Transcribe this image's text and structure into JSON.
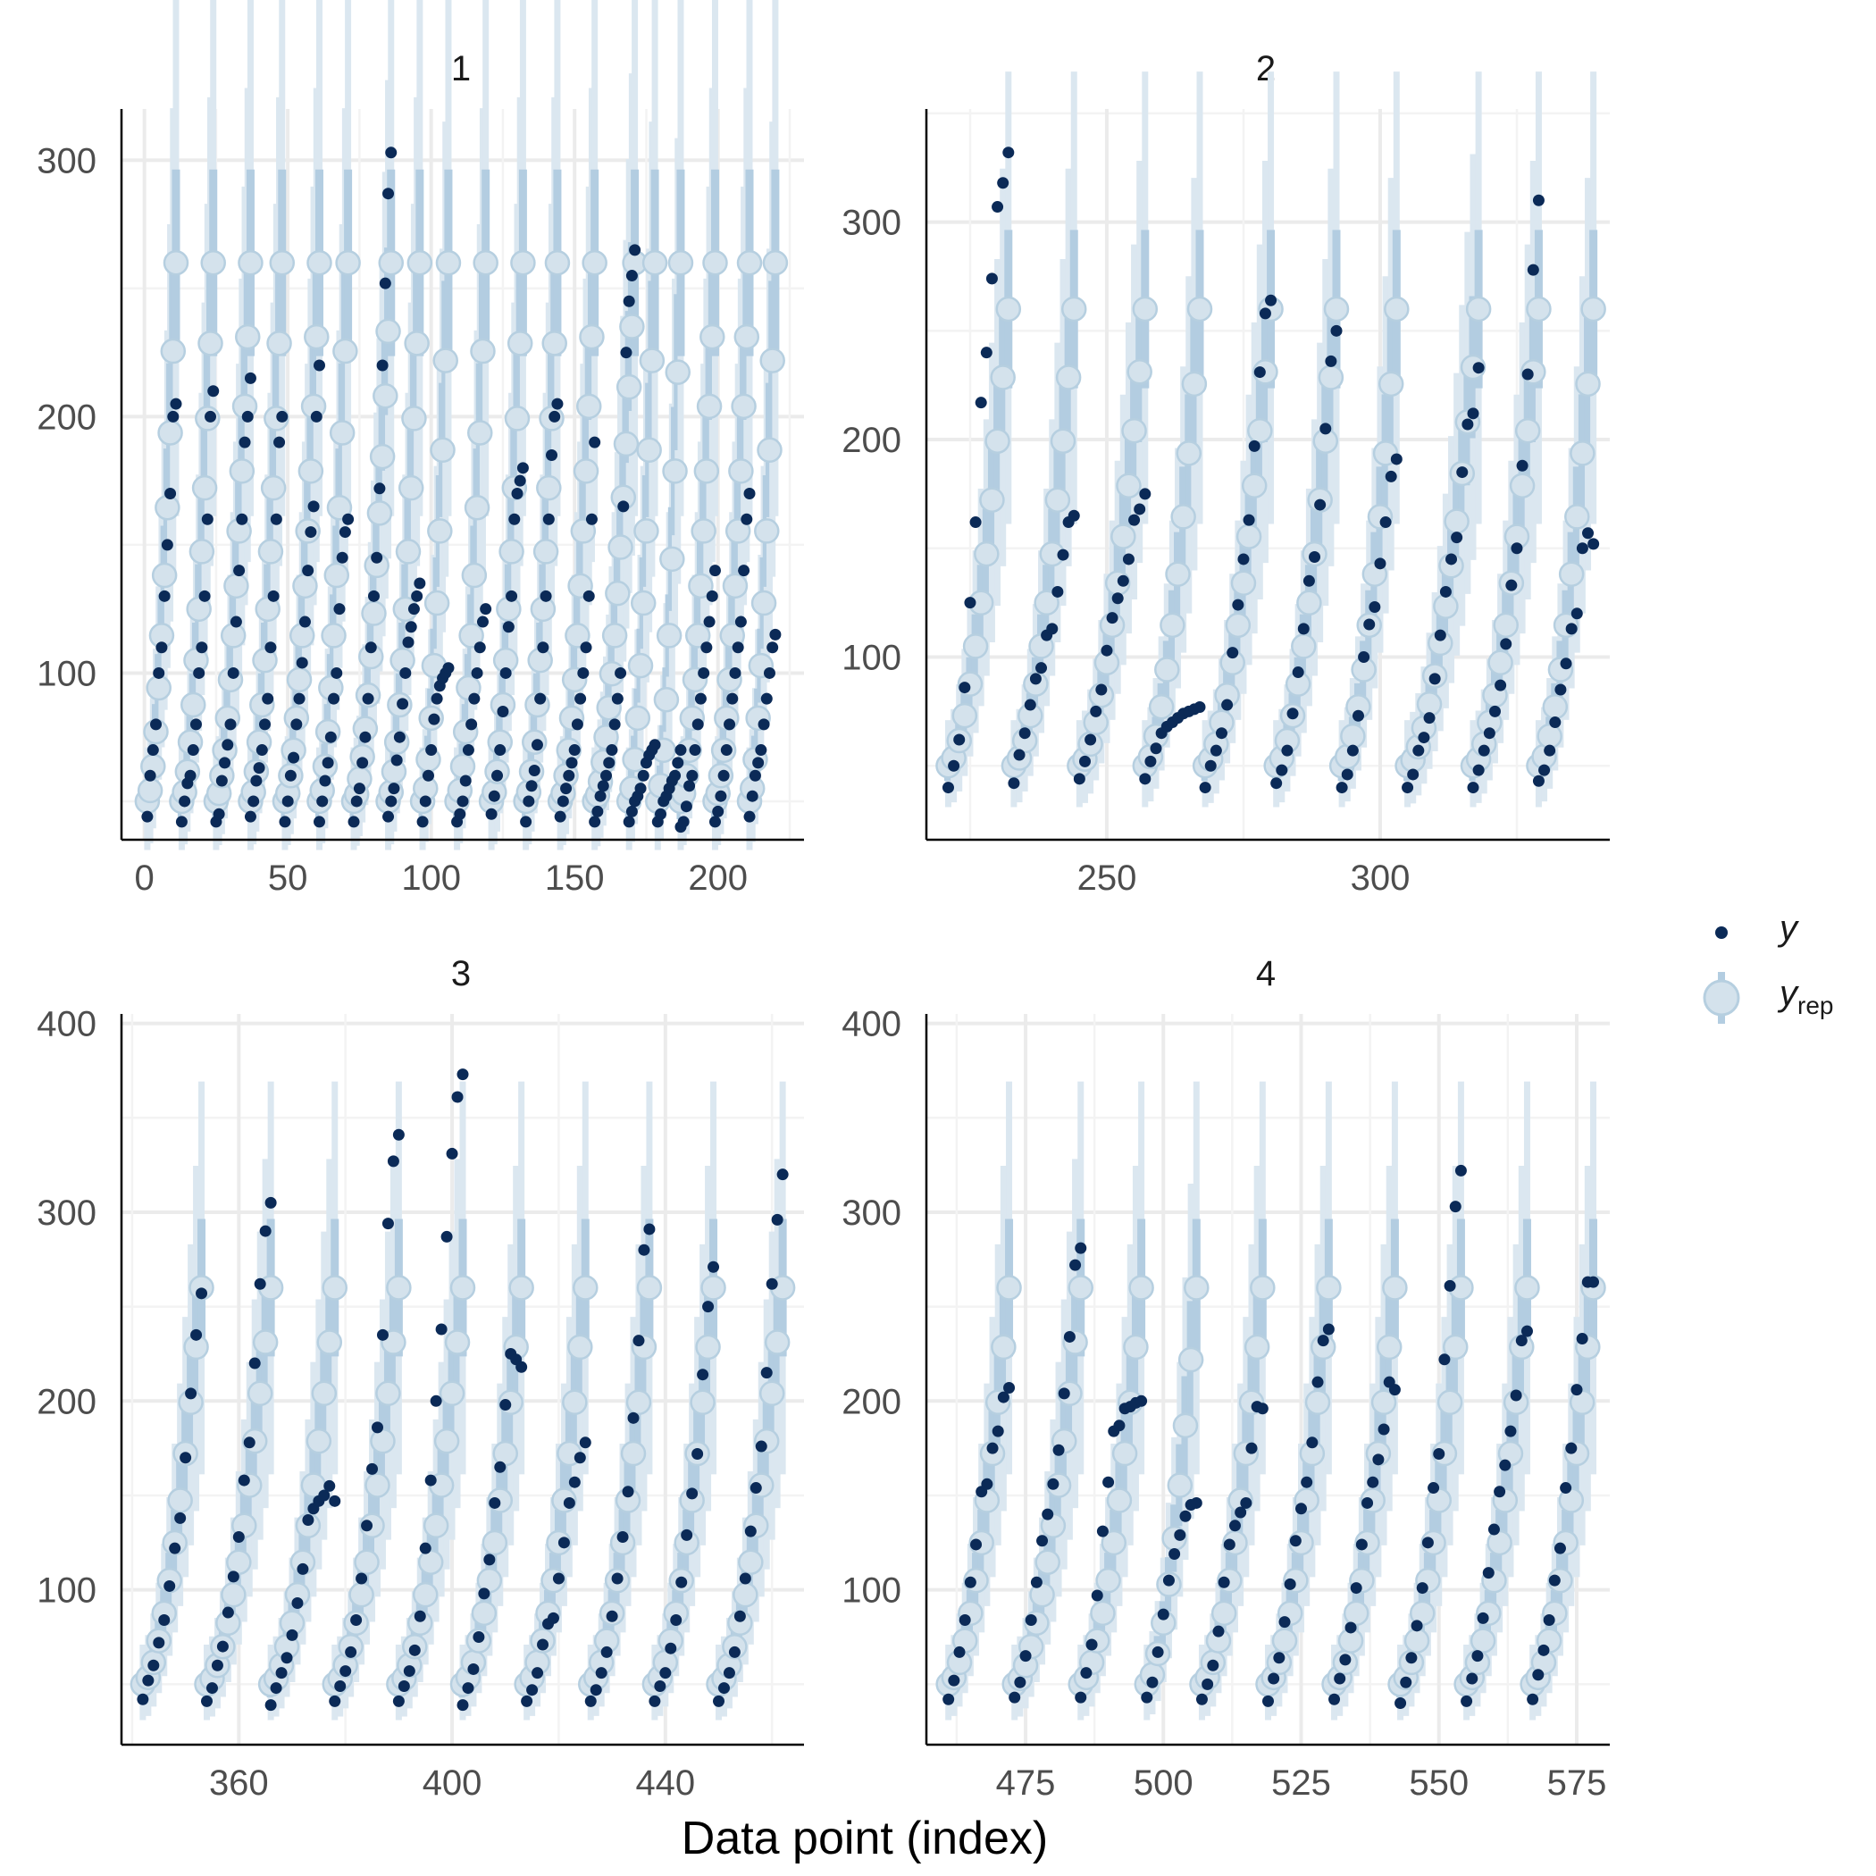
{
  "chart_data": {
    "type": "scatter",
    "xlabel": "Data point (index)",
    "legend": {
      "placement": "right",
      "items": [
        {
          "key": "y",
          "label": "y",
          "sub": ""
        },
        {
          "key": "yrep",
          "label": "y",
          "sub": "rep"
        }
      ]
    },
    "colors": {
      "y_point": "#0b2a57",
      "yrep_point": "#d4e2ec",
      "yrep_point_edge": "#b6cfe0",
      "interval_inner": "#b3cde1",
      "interval_outer": "#dbe7f0",
      "grid_major": "#ebebeb",
      "grid_minor": "#f3f3f3",
      "axis": "#000000"
    },
    "panels": [
      {
        "label": "1",
        "xlim": [
          -8,
          230
        ],
        "ylim": [
          35,
          320
        ],
        "xticks": [
          0,
          50,
          100,
          150,
          200
        ],
        "yticks": [
          100,
          200,
          300
        ],
        "groups": [
          {
            "start": 1,
            "y": [
              44,
              60,
              70,
              80,
              100,
              110,
              130,
              150,
              170,
              200,
              205
            ]
          },
          {
            "start": 13,
            "y": [
              42,
              50,
              57,
              60,
              70,
              80,
              100,
              110,
              130,
              160,
              200,
              210
            ]
          },
          {
            "start": 25,
            "y": [
              42,
              45,
              58,
              65,
              72,
              80,
              100,
              120,
              140,
              160,
              190,
              200,
              215
            ]
          },
          {
            "start": 37,
            "y": [
              44,
              50,
              58,
              63,
              70,
              80,
              90,
              110,
              130,
              160,
              190,
              200
            ]
          },
          {
            "start": 49,
            "y": [
              42,
              50,
              60,
              67,
              80,
              90,
              104,
              120,
              140,
              155,
              165,
              200,
              220
            ]
          },
          {
            "start": 61,
            "y": [
              42,
              50,
              58,
              65,
              75,
              90,
              100,
              125,
              145,
              155,
              160
            ]
          },
          {
            "start": 73,
            "y": [
              42,
              50,
              55,
              65,
              75,
              90,
              110,
              130,
              145,
              172,
              220,
              252,
              287,
              303
            ]
          },
          {
            "start": 85,
            "y": [
              44,
              50,
              55,
              66,
              75,
              88,
              100,
              112,
              118,
              125,
              130,
              135
            ]
          },
          {
            "start": 97,
            "y": [
              42,
              50,
              60,
              70,
              82,
              90,
              95,
              98,
              100,
              102
            ]
          },
          {
            "start": 109,
            "y": [
              42,
              45,
              50,
              58,
              70,
              80,
              90,
              100,
              110,
              120,
              125
            ]
          },
          {
            "start": 121,
            "y": [
              45,
              52,
              60,
              70,
              85,
              100,
              118,
              130,
              160,
              170,
              175,
              180
            ]
          },
          {
            "start": 133,
            "y": [
              42,
              50,
              56,
              62,
              72,
              90,
              110,
              130,
              160,
              185,
              200,
              205
            ]
          },
          {
            "start": 145,
            "y": [
              44,
              50,
              55,
              60,
              65,
              70,
              80,
              90,
              100,
              110,
              130,
              160,
              190
            ]
          },
          {
            "start": 157,
            "y": [
              42,
              46,
              52,
              56,
              60,
              65,
              70,
              80,
              90,
              100,
              165,
              225,
              245,
              255,
              265
            ]
          },
          {
            "start": 169,
            "y": [
              42,
              46,
              50,
              52,
              55,
              60,
              65,
              68,
              70,
              72
            ]
          },
          {
            "start": 179,
            "y": [
              42,
              45,
              50,
              52,
              55,
              58,
              60,
              65,
              70
            ]
          },
          {
            "start": 187,
            "y": [
              40,
              42,
              48,
              56,
              60,
              70,
              80,
              90,
              100,
              110,
              120,
              130,
              140
            ]
          },
          {
            "start": 199,
            "y": [
              42,
              46,
              52,
              60,
              70,
              80,
              90,
              100,
              110,
              120,
              140,
              160,
              170
            ]
          },
          {
            "start": 211,
            "y": [
              44,
              52,
              60,
              65,
              70,
              80,
              90,
              100,
              110,
              115
            ]
          }
        ]
      },
      {
        "label": "2",
        "xlim": [
          217,
          342
        ],
        "ylim": [
          16,
          352
        ],
        "xticks": [
          250,
          300
        ],
        "yticks": [
          100,
          200,
          300
        ],
        "groups": [
          {
            "start": 221,
            "y": [
              40,
              50,
              62,
              86,
              125,
              162,
              217,
              240,
              274,
              307,
              318,
              332
            ]
          },
          {
            "start": 233,
            "y": [
              42,
              55,
              65,
              78,
              90,
              95,
              110,
              113,
              130,
              147,
              162,
              165
            ]
          },
          {
            "start": 245,
            "y": [
              44,
              52,
              62,
              75,
              85,
              103,
              118,
              127,
              135,
              145,
              163,
              168,
              175
            ]
          },
          {
            "start": 257,
            "y": [
              44,
              52,
              58,
              65,
              68,
              70,
              72,
              74,
              75,
              76,
              77
            ]
          },
          {
            "start": 268,
            "y": [
              40,
              50,
              57,
              65,
              78,
              102,
              124,
              145,
              163,
              197,
              231,
              258,
              264
            ]
          },
          {
            "start": 281,
            "y": [
              42,
              48,
              57,
              74,
              93,
              113,
              135,
              146,
              170,
              205,
              236,
              250
            ]
          },
          {
            "start": 293,
            "y": [
              40,
              46,
              57,
              73,
              100,
              115,
              123,
              143,
              162,
              183,
              191
            ]
          },
          {
            "start": 305,
            "y": [
              40,
              46,
              57,
              63,
              72,
              90,
              110,
              130,
              145,
              155,
              185,
              207,
              212,
              233
            ]
          },
          {
            "start": 317,
            "y": [
              40,
              48,
              57,
              65,
              75,
              87,
              106,
              133,
              150,
              188,
              230,
              278,
              310
            ]
          },
          {
            "start": 329,
            "y": [
              43,
              48,
              57,
              70,
              85,
              97,
              113,
              120,
              150,
              157,
              152
            ]
          }
        ]
      },
      {
        "label": "3",
        "xlim": [
          338,
          466
        ],
        "ylim": [
          18,
          405
        ],
        "xticks": [
          360,
          400,
          440
        ],
        "yticks": [
          100,
          200,
          300,
          400
        ],
        "groups": [
          {
            "start": 342,
            "y": [
              42,
              52,
              60,
              72,
              84,
              102,
              122,
              138,
              170,
              204,
              235,
              257
            ]
          },
          {
            "start": 354,
            "y": [
              41,
              48,
              60,
              70,
              88,
              107,
              128,
              158,
              178,
              220,
              262,
              290,
              305
            ]
          },
          {
            "start": 366,
            "y": [
              39,
              48,
              56,
              64,
              76,
              93,
              111,
              137,
              143,
              147,
              150,
              155,
              147
            ]
          },
          {
            "start": 378,
            "y": [
              41,
              49,
              57,
              67,
              84,
              106,
              134,
              164,
              186,
              235,
              294,
              327,
              341
            ]
          },
          {
            "start": 390,
            "y": [
              41,
              49,
              57,
              68,
              86,
              122,
              158,
              200,
              238,
              287,
              331,
              361,
              373
            ]
          },
          {
            "start": 402,
            "y": [
              39,
              48,
              58,
              75,
              98,
              116,
              146,
              165,
              198,
              225,
              222,
              218
            ]
          },
          {
            "start": 414,
            "y": [
              41,
              47,
              56,
              71,
              82,
              85,
              106,
              125,
              146,
              157,
              170,
              178
            ]
          },
          {
            "start": 426,
            "y": [
              41,
              47,
              56,
              67,
              86,
              106,
              128,
              152,
              191,
              232,
              280,
              291
            ]
          },
          {
            "start": 438,
            "y": [
              41,
              49,
              56,
              69,
              84,
              104,
              129,
              151,
              172,
              214,
              250,
              271
            ]
          },
          {
            "start": 450,
            "y": [
              41,
              48,
              56,
              67,
              86,
              106,
              131,
              154,
              176,
              215,
              262,
              296,
              320
            ]
          }
        ]
      },
      {
        "label": "4",
        "xlim": [
          457,
          581
        ],
        "ylim": [
          18,
          405
        ],
        "xticks": [
          475,
          500,
          525,
          550,
          575
        ],
        "yticks": [
          100,
          200,
          300,
          400
        ],
        "groups": [
          {
            "start": 461,
            "y": [
              42,
              52,
              67,
              84,
              104,
              124,
              152,
              156,
              175,
              184,
              202,
              207
            ]
          },
          {
            "start": 473,
            "y": [
              43,
              51,
              65,
              84,
              104,
              126,
              140,
              156,
              174,
              204,
              234,
              272,
              281
            ]
          },
          {
            "start": 485,
            "y": [
              43,
              56,
              71,
              97,
              131,
              157,
              184,
              187,
              196,
              197,
              199,
              200
            ]
          },
          {
            "start": 497,
            "y": [
              43,
              51,
              67,
              87,
              105,
              119,
              129,
              139,
              145,
              146
            ]
          },
          {
            "start": 507,
            "y": [
              42,
              50,
              60,
              78,
              104,
              124,
              134,
              141,
              146,
              175,
              197,
              196
            ]
          },
          {
            "start": 519,
            "y": [
              41,
              53,
              64,
              83,
              103,
              126,
              143,
              157,
              178,
              210,
              232,
              238
            ]
          },
          {
            "start": 531,
            "y": [
              42,
              53,
              63,
              80,
              101,
              124,
              146,
              157,
              169,
              185,
              210,
              206
            ]
          },
          {
            "start": 543,
            "y": [
              40,
              51,
              64,
              81,
              101,
              125,
              154,
              172,
              222,
              261,
              303,
              322
            ]
          },
          {
            "start": 555,
            "y": [
              41,
              53,
              65,
              85,
              109,
              132,
              152,
              166,
              184,
              203,
              232,
              237
            ]
          },
          {
            "start": 567,
            "y": [
              42,
              55,
              68,
              84,
              105,
              122,
              154,
              175,
              206,
              233,
              263,
              263
            ]
          }
        ]
      }
    ]
  }
}
